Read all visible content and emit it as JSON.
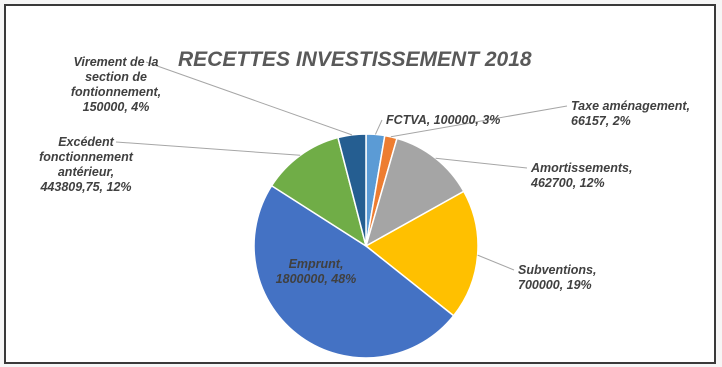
{
  "chart_data": {
    "type": "pie",
    "title": "RECETTES INVESTISSEMENT 2018",
    "slices": [
      {
        "label_lines": [
          "FCTVA, 100000, 3%"
        ],
        "value": 100000,
        "percent": 3,
        "color": "#5b9bd5"
      },
      {
        "label_lines": [
          "Taxe aménagement,",
          "66157, 2%"
        ],
        "value": 66157,
        "percent": 2,
        "color": "#ed7d31"
      },
      {
        "label_lines": [
          "Amortissements,",
          "462700, 12%"
        ],
        "value": 462700,
        "percent": 12,
        "color": "#a5a5a5"
      },
      {
        "label_lines": [
          "Subventions,",
          "700000, 19%"
        ],
        "value": 700000,
        "percent": 19,
        "color": "#ffc000"
      },
      {
        "label_lines": [
          "Emprunt,",
          "1800000, 48%"
        ],
        "value": 1800000,
        "percent": 48,
        "color": "#4472c4"
      },
      {
        "label_lines": [
          "Excédent",
          "fonctionnement",
          "antérieur,",
          "443809,75, 12%"
        ],
        "value": 443809.75,
        "percent": 12,
        "color": "#70ad47"
      },
      {
        "label_lines": [
          "Virement de la",
          "section de",
          "fontionnement,",
          "150000, 4%"
        ],
        "value": 150000,
        "percent": 4,
        "color": "#255e91"
      }
    ]
  }
}
